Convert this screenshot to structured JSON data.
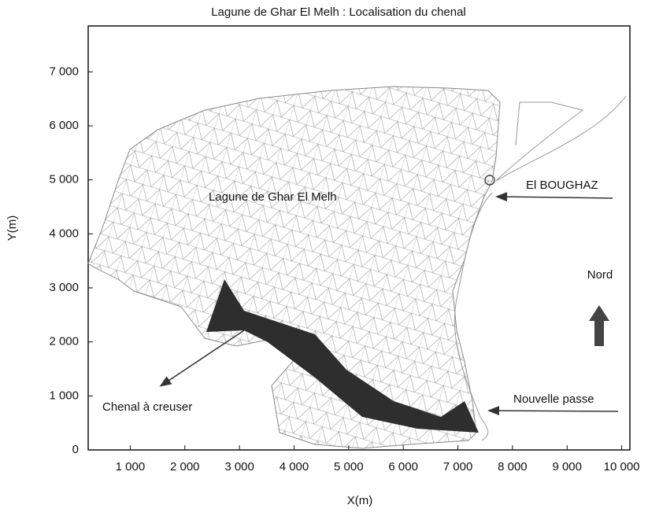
{
  "chart_data": {
    "type": "map",
    "title": "Lagune de Ghar El Melh : Localisation du chenal",
    "x_label": "X(m)",
    "y_label": "Y(m)",
    "xlim": [
      230,
      10150
    ],
    "ylim": [
      0,
      7850
    ],
    "xticks": [
      {
        "value": 1000,
        "label": "1 000"
      },
      {
        "value": 2000,
        "label": "2 000"
      },
      {
        "value": 3000,
        "label": "3 000"
      },
      {
        "value": 4000,
        "label": "4 000"
      },
      {
        "value": 5000,
        "label": "5 000"
      },
      {
        "value": 6000,
        "label": "6 000"
      },
      {
        "value": 7000,
        "label": "7 000"
      },
      {
        "value": 8000,
        "label": "8 000"
      },
      {
        "value": 9000,
        "label": "9 000"
      },
      {
        "value": 10000,
        "label": "10 000"
      }
    ],
    "yticks": [
      0,
      {
        "value": 1000,
        "label": "1 000"
      },
      {
        "value": 2000,
        "label": "2 000"
      },
      {
        "value": 3000,
        "label": "3 000"
      },
      {
        "value": 4000,
        "label": "4 000"
      },
      {
        "value": 5000,
        "label": "5 000"
      },
      {
        "value": 6000,
        "label": "6 000"
      },
      {
        "value": 7000,
        "label": "7 000"
      }
    ],
    "annotations": {
      "lagoon": "Lagune de Ghar El Melh",
      "inlet": "El BOUGHAZ",
      "north": "Nord",
      "new_pass": "Nouvelle passe",
      "channel": "Chenal à creuser"
    }
  }
}
